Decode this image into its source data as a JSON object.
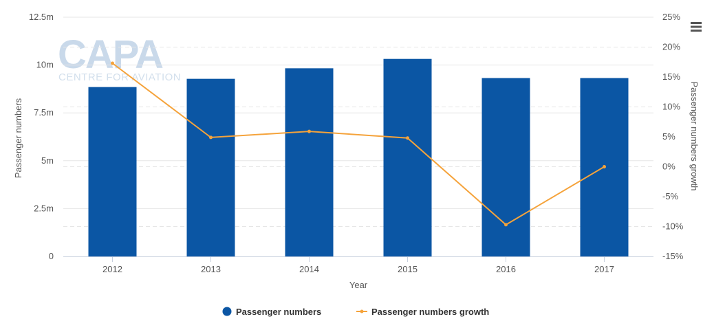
{
  "logo": {
    "text": "CAPA",
    "subtext": "CENTRE FOR AVIATION"
  },
  "menu": {
    "icon": "hamburger-menu-icon"
  },
  "chart_data": {
    "type": "bar",
    "categories": [
      "2012",
      "2013",
      "2014",
      "2015",
      "2016",
      "2017"
    ],
    "series": [
      {
        "name": "Passenger numbers",
        "type": "bar",
        "axis": "left",
        "color": "#0b56a4",
        "values": [
          8.85,
          9.28,
          9.83,
          10.32,
          9.32,
          9.32
        ]
      },
      {
        "name": "Passenger numbers growth",
        "type": "line",
        "axis": "right",
        "color": "#f5a33b",
        "values": [
          17.3,
          4.9,
          5.9,
          4.8,
          -9.7,
          0.0
        ]
      }
    ],
    "xlabel": "Year",
    "ylabel": "Passenger numbers",
    "y2label": "Passenger numbers growth",
    "ylim": [
      0,
      12.5
    ],
    "y2lim": [
      -15,
      25
    ],
    "yticks": [
      "0",
      "2.5m",
      "5m",
      "7.5m",
      "10m",
      "12.5m"
    ],
    "y2ticks": [
      "-15%",
      "-10%",
      "-5%",
      "0%",
      "5%",
      "10%",
      "15%",
      "20%",
      "25%"
    ],
    "grid": true,
    "legend": "bottom-center"
  }
}
